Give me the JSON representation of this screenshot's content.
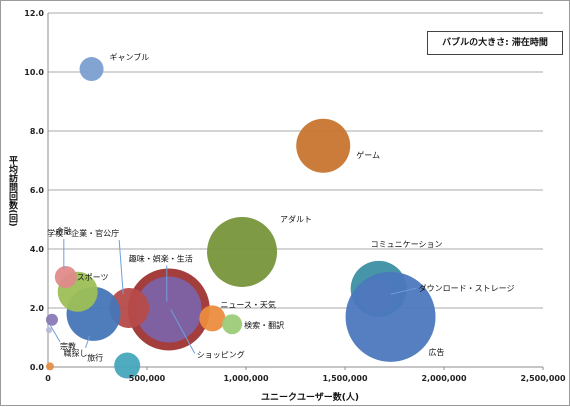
{
  "chart_data": {
    "type": "bubble",
    "xlabel": "ユニークユーザー数(人)",
    "ylabel": "平均訪問回数(回)",
    "legend_note": "バブルの大きさ: 滞在時間",
    "xlim": [
      0,
      2500000
    ],
    "ylim": [
      0,
      12
    ],
    "x_ticks": [
      "0",
      "500,000",
      "1,000,000",
      "1,500,000",
      "2,000,000",
      "2,500,000"
    ],
    "y_ticks": [
      "0.0",
      "2.0",
      "4.0",
      "6.0",
      "8.0",
      "10.0",
      "12.0"
    ],
    "grid": "horizontal",
    "points": [
      {
        "label": "ギャンブル",
        "x": 220000,
        "y": 10.1,
        "size": 12,
        "color": "#7b9fd1"
      },
      {
        "label": "ゲーム",
        "x": 1390000,
        "y": 7.5,
        "size": 27,
        "color": "#c8752f"
      },
      {
        "label": "アダルト",
        "x": 980000,
        "y": 3.9,
        "size": 35,
        "color": "#77953a"
      },
      {
        "label": "コミュニケーション",
        "x": 1670000,
        "y": 2.65,
        "size": 28,
        "color": "#3c8fa3"
      },
      {
        "label": "ダウンロード・ストレージ",
        "x": 1660000,
        "y": 2.4,
        "size": 17,
        "color": "#9a7bc2"
      },
      {
        "label": "広告",
        "x": 1730000,
        "y": 1.7,
        "size": 45,
        "color": "#4c78bd"
      },
      {
        "label": "ショッピング",
        "x": 610000,
        "y": 1.95,
        "size": 41,
        "color": "#9e3432"
      },
      {
        "label": "趣味・娯楽・生活",
        "x": 610000,
        "y": 1.95,
        "size": 33,
        "color": "#7d63a8"
      },
      {
        "label": "学校・企業・官公庁",
        "x": 410000,
        "y": 2.0,
        "size": 20,
        "color": "#b64b4a"
      },
      {
        "label": "職探し",
        "x": 230000,
        "y": 1.8,
        "size": 27,
        "color": "#4676b8"
      },
      {
        "label": "スポーツ",
        "x": 150000,
        "y": 2.55,
        "size": 20,
        "color": "#9cbf55"
      },
      {
        "label": "金融",
        "x": 90000,
        "y": 3.05,
        "size": 11,
        "color": "#e08a8a"
      },
      {
        "label": "ニュース・天気",
        "x": 830000,
        "y": 1.65,
        "size": 13,
        "color": "#ec8c3f"
      },
      {
        "label": "検索・翻訳",
        "x": 930000,
        "y": 1.45,
        "size": 10,
        "color": "#9ccb78"
      },
      {
        "label": "旅行",
        "x": 400000,
        "y": 0.05,
        "size": 13,
        "color": "#46a7bd"
      },
      {
        "label": "宗教",
        "x": 20000,
        "y": 1.6,
        "size": 6,
        "color": "#8a79b8"
      },
      {
        "label": "",
        "x": 5000,
        "y": 1.25,
        "size": 3,
        "color": "#b9b9d8"
      },
      {
        "label": "",
        "x": 10000,
        "y": 0.02,
        "size": 4,
        "color": "#e38f45"
      }
    ]
  }
}
